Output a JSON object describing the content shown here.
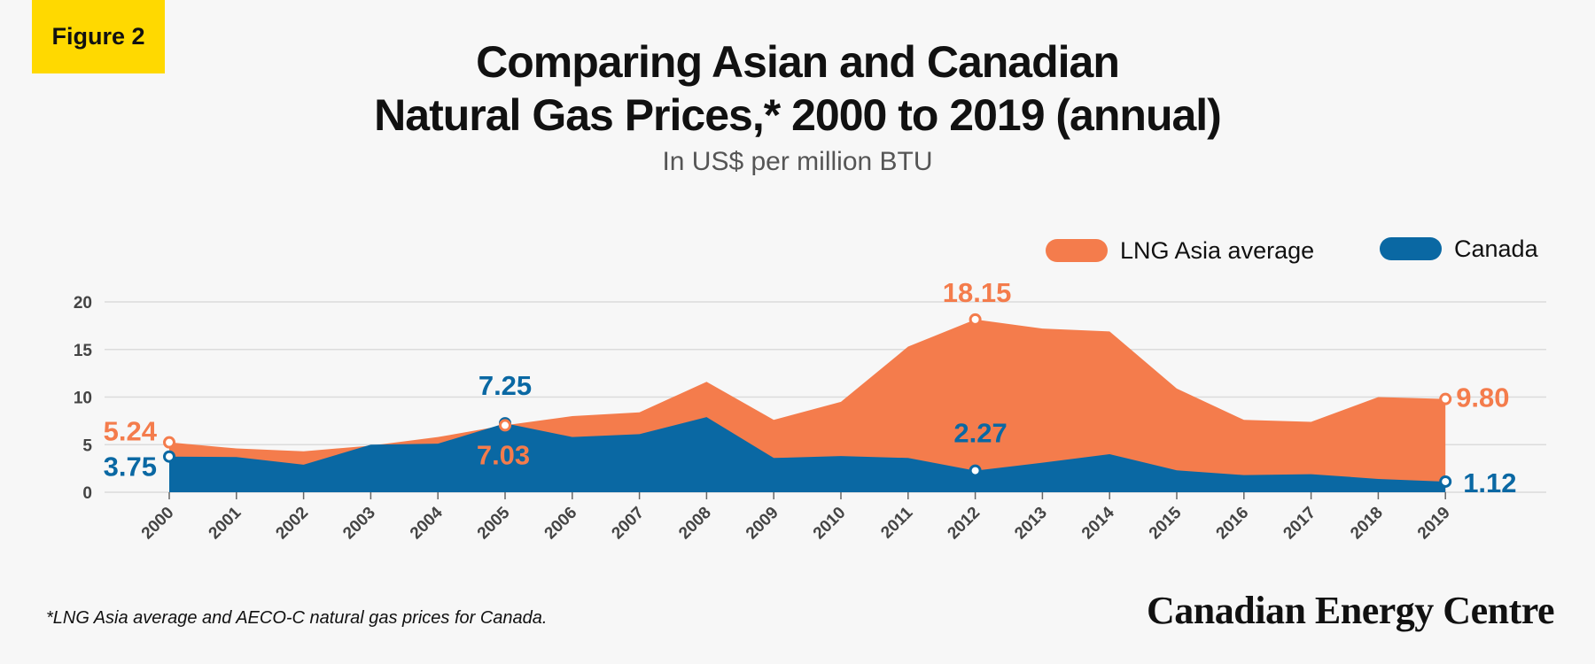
{
  "badge": "Figure 2",
  "title_line1": "Comparing Asian and Canadian",
  "title_line2": "Natural Gas Prices,* 2000 to 2019 (annual)",
  "subtitle": "In US$ per million BTU",
  "footnote": "*LNG Asia average and AECO-C natural gas prices for Canada.",
  "brand": "Canadian Energy Centre",
  "colors": {
    "lng": "#f47c4c",
    "canada": "#0a68a3",
    "badge": "#ffd900"
  },
  "chart_data": {
    "type": "area",
    "title": "Comparing Asian and Canadian Natural Gas Prices,* 2000 to 2019 (annual)",
    "subtitle": "In US$ per million BTU",
    "x": [
      "2000",
      "2001",
      "2002",
      "2003",
      "2004",
      "2005",
      "2006",
      "2007",
      "2008",
      "2009",
      "2010",
      "2011",
      "2012",
      "2013",
      "2014",
      "2015",
      "2016",
      "2017",
      "2018",
      "2019"
    ],
    "ylim": [
      0,
      20
    ],
    "yticks": [
      "0",
      "5",
      "10",
      "15",
      "20"
    ],
    "grid": true,
    "legend_placement": "top-right",
    "series": [
      {
        "name": "LNG Asia average",
        "color": "#f47c4c",
        "values": [
          5.24,
          4.6,
          4.3,
          4.9,
          5.8,
          7.03,
          8.0,
          8.4,
          11.6,
          7.6,
          9.5,
          15.3,
          18.15,
          17.2,
          16.9,
          10.9,
          7.6,
          7.4,
          10.0,
          9.8
        ]
      },
      {
        "name": "Canada",
        "color": "#0a68a3",
        "values": [
          3.75,
          3.7,
          2.9,
          5.0,
          5.1,
          7.25,
          5.8,
          6.1,
          7.9,
          3.6,
          3.8,
          3.6,
          2.27,
          3.1,
          4.0,
          2.3,
          1.8,
          1.9,
          1.4,
          1.12
        ]
      }
    ],
    "annotations": [
      {
        "series": 0,
        "index": 0,
        "text": "5.24"
      },
      {
        "series": 1,
        "index": 0,
        "text": "3.75"
      },
      {
        "series": 1,
        "index": 5,
        "text": "7.25"
      },
      {
        "series": 0,
        "index": 5,
        "text": "7.03"
      },
      {
        "series": 0,
        "index": 12,
        "text": "18.15"
      },
      {
        "series": 1,
        "index": 12,
        "text": "2.27"
      },
      {
        "series": 0,
        "index": 19,
        "text": "9.80"
      },
      {
        "series": 1,
        "index": 19,
        "text": "1.12"
      }
    ]
  }
}
